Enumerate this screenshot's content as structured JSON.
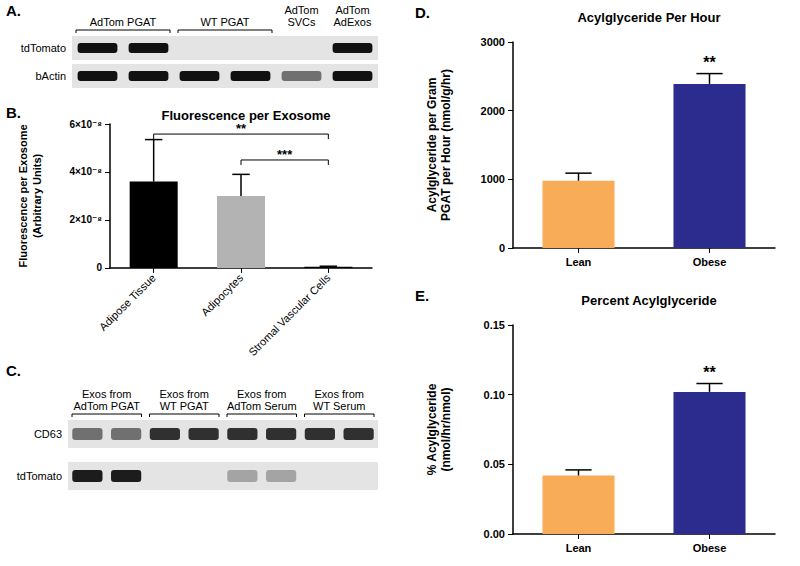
{
  "chart_data": [
    {
      "panel_label": "B.",
      "type": "bar",
      "title": "Fluorescence per Exosome",
      "y_label": "Fluorescence per Exosome (Arbitrary Units)",
      "categories": [
        "Adipose Tissue",
        "Adipocytes",
        "Stromal Vascular Cells"
      ],
      "values": [
        3.6e-08,
        3e-08,
        5e-10
      ],
      "errors": [
        1.75e-08,
        9e-09,
        2e-10
      ],
      "colors": [
        "#000000",
        "#b3b3b3",
        "#000000"
      ],
      "ylim": [
        0,
        6e-08
      ],
      "yticks": [
        0,
        {
          "value": 2e-08,
          "label": "2×10⁻⁸"
        },
        {
          "value": 4e-08,
          "label": "4×10⁻⁸"
        },
        {
          "value": 6e-08,
          "label": "6×10⁻⁸"
        }
      ],
      "grid": false,
      "annotations": [
        {
          "text": "**",
          "from": "Adipose Tissue",
          "to": "Stromal Vascular Cells"
        },
        {
          "text": "***",
          "from": "Adipocytes",
          "to": "Stromal Vascular Cells"
        }
      ]
    },
    {
      "panel_label": "D.",
      "type": "bar",
      "title": "Acylglyceride Per Hour",
      "y_label": "Acylglyceride per Gram PGAT per Hour (nmol/g/hr)",
      "categories": [
        "Lean",
        "Obese"
      ],
      "values": [
        980,
        2390
      ],
      "errors": [
        110,
        150
      ],
      "colors": [
        "#f9ac58",
        "#2c2b8e"
      ],
      "ylim": [
        0,
        3000
      ],
      "yticks": [
        0,
        1000,
        2000,
        3000
      ],
      "grid": false,
      "annotations": [
        {
          "text": "**",
          "category": "Obese"
        }
      ]
    },
    {
      "panel_label": "E.",
      "type": "bar",
      "title": "Percent Acylglyceride",
      "y_label": "% Acylglyceride (nmol/hr/nmol)",
      "categories": [
        "Lean",
        "Obese"
      ],
      "values": [
        0.042,
        0.102
      ],
      "errors": [
        0.004,
        0.006
      ],
      "colors": [
        "#f9ac58",
        "#2c2b8e"
      ],
      "ylim": [
        0,
        0.15
      ],
      "yticks": [
        {
          "value": 0,
          "label": "0.00"
        },
        {
          "value": 0.05,
          "label": "0.05"
        },
        {
          "value": 0.1,
          "label": "0.10"
        },
        {
          "value": 0.15,
          "label": "0.15"
        }
      ],
      "grid": false,
      "annotations": [
        {
          "text": "**",
          "category": "Obese"
        }
      ]
    }
  ],
  "blots": [
    {
      "panel_label": "A.",
      "lane_groups": [
        {
          "label": "AdTom PGAT",
          "lanes": 2
        },
        {
          "label": "WT PGAT",
          "lanes": 2
        },
        {
          "label": "AdTom SVCs",
          "lanes": 1
        },
        {
          "label": "AdTom AdExos",
          "lanes": 1
        }
      ],
      "rows": [
        {
          "label": "tdTomato",
          "bands": [
            1,
            1,
            0,
            0,
            0,
            1
          ]
        },
        {
          "label": "bActin",
          "bands": [
            1,
            1,
            1,
            1,
            0.55,
            1
          ]
        }
      ]
    },
    {
      "panel_label": "C.",
      "lane_groups": [
        {
          "label": "Exos from AdTom PGAT",
          "lanes": 2
        },
        {
          "label": "Exos from WT PGAT",
          "lanes": 2
        },
        {
          "label": "Exos from AdTom Serum",
          "lanes": 2
        },
        {
          "label": "Exos from WT Serum",
          "lanes": 2
        }
      ],
      "rows": [
        {
          "label": "CD63",
          "bands": [
            0.55,
            0.55,
            0.85,
            0.85,
            0.85,
            0.85,
            0.85,
            0.85
          ]
        },
        {
          "label": "tdTomato",
          "bands": [
            0.95,
            0.95,
            0,
            0,
            0.3,
            0.3,
            0,
            0
          ]
        }
      ]
    }
  ]
}
